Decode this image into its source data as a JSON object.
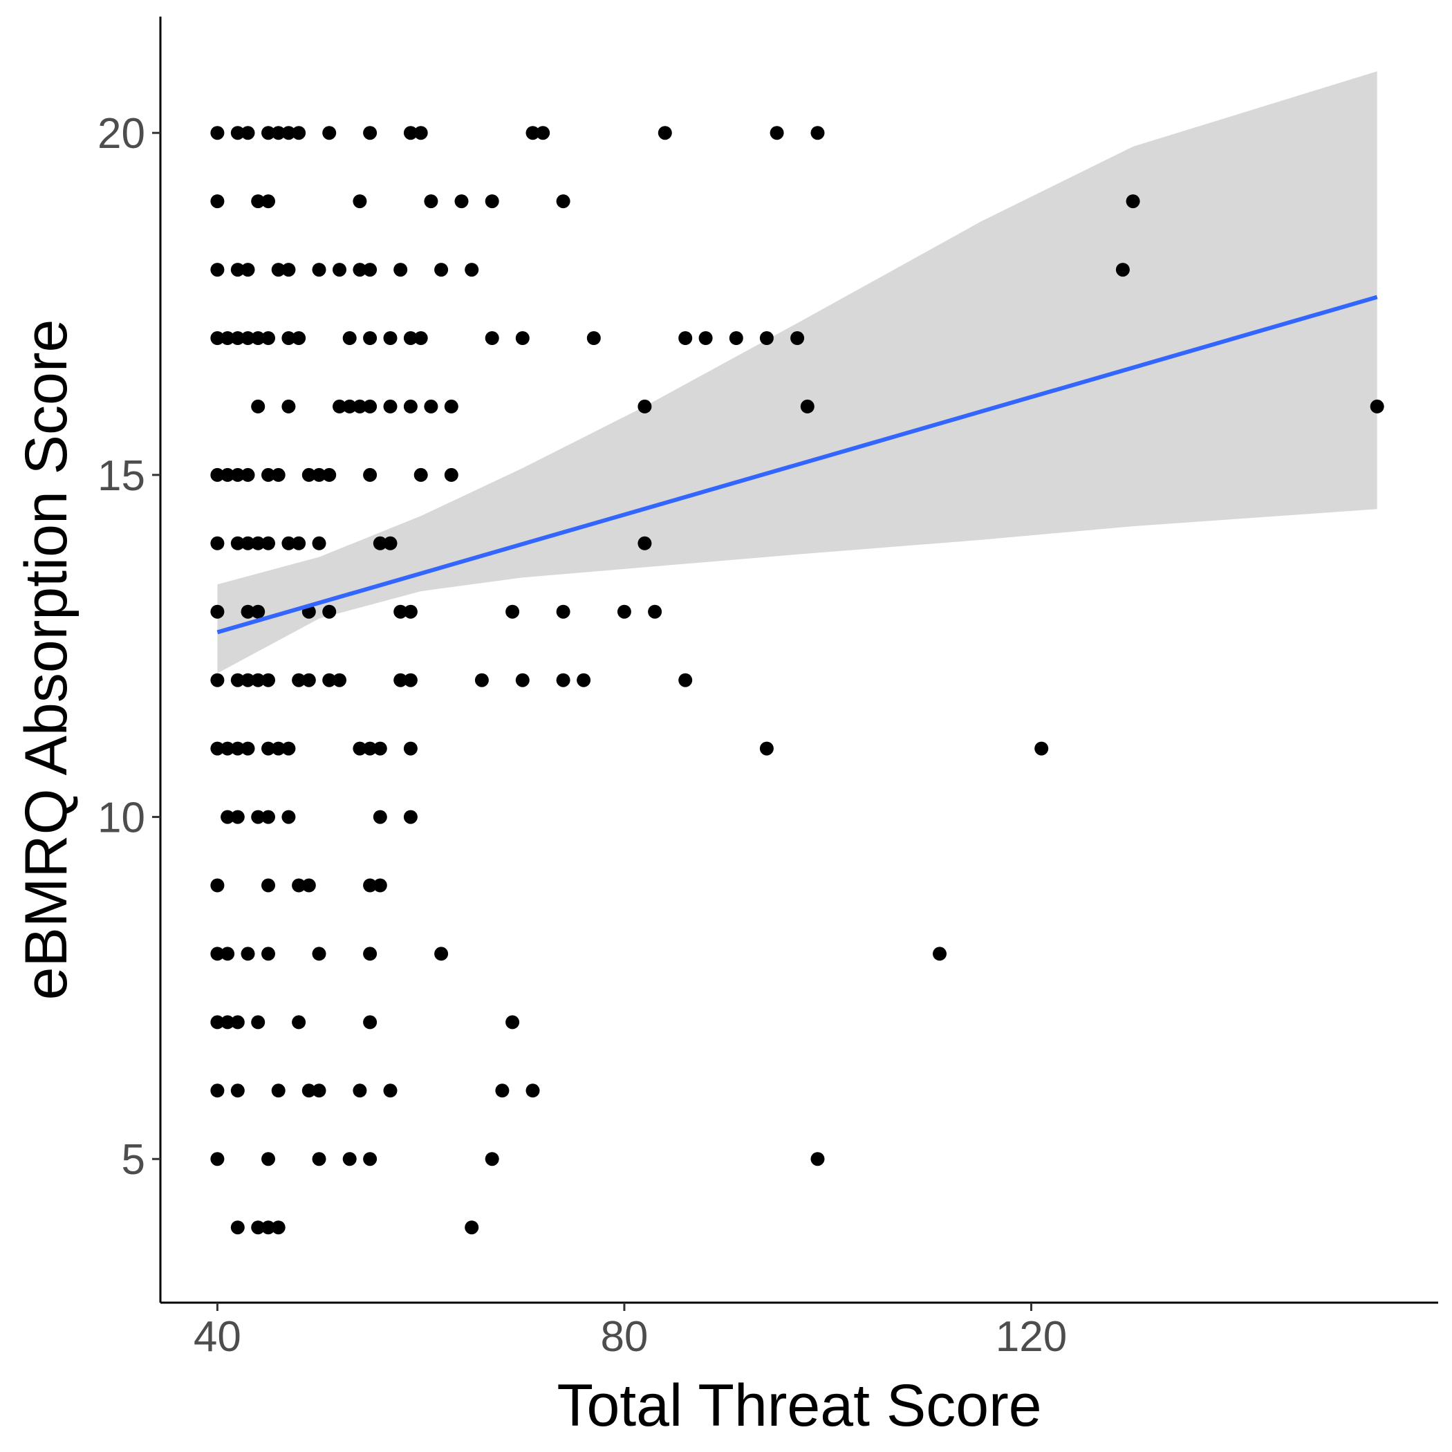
{
  "chart_data": {
    "type": "scatter",
    "xlabel": "Total Threat Score",
    "ylabel": "eBMRQ Absorption Score",
    "xlim": [
      34.4,
      160
    ],
    "ylim": [
      2.9,
      21.7
    ],
    "xticks": [
      40,
      80,
      120
    ],
    "yticks": [
      5,
      10,
      15,
      20
    ],
    "grid": false,
    "points_color": "#000000",
    "fit_color": "#3366ff",
    "ribbon_color": "#d4d4d4",
    "series": [
      {
        "points": [
          [
            40,
            20
          ],
          [
            42,
            20
          ],
          [
            43,
            20
          ],
          [
            45,
            20
          ],
          [
            46,
            20
          ],
          [
            47,
            20
          ],
          [
            48,
            20
          ],
          [
            51,
            20
          ],
          [
            55,
            20
          ],
          [
            59,
            20
          ],
          [
            60,
            20
          ],
          [
            71,
            20
          ],
          [
            72,
            20
          ],
          [
            84,
            20
          ],
          [
            95,
            20
          ],
          [
            99,
            20
          ],
          [
            40,
            19
          ],
          [
            44,
            19
          ],
          [
            45,
            19
          ],
          [
            54,
            19
          ],
          [
            61,
            19
          ],
          [
            64,
            19
          ],
          [
            67,
            19
          ],
          [
            74,
            19
          ],
          [
            130,
            19
          ],
          [
            40,
            18
          ],
          [
            42,
            18
          ],
          [
            43,
            18
          ],
          [
            46,
            18
          ],
          [
            47,
            18
          ],
          [
            50,
            18
          ],
          [
            52,
            18
          ],
          [
            54,
            18
          ],
          [
            55,
            18
          ],
          [
            58,
            18
          ],
          [
            62,
            18
          ],
          [
            65,
            18
          ],
          [
            129,
            18
          ],
          [
            40,
            17
          ],
          [
            41,
            17
          ],
          [
            42,
            17
          ],
          [
            43,
            17
          ],
          [
            44,
            17
          ],
          [
            45,
            17
          ],
          [
            47,
            17
          ],
          [
            48,
            17
          ],
          [
            53,
            17
          ],
          [
            55,
            17
          ],
          [
            57,
            17
          ],
          [
            59,
            17
          ],
          [
            60,
            17
          ],
          [
            67,
            17
          ],
          [
            70,
            17
          ],
          [
            77,
            17
          ],
          [
            86,
            17
          ],
          [
            88,
            17
          ],
          [
            91,
            17
          ],
          [
            94,
            17
          ],
          [
            97,
            17
          ],
          [
            44,
            16
          ],
          [
            47,
            16
          ],
          [
            52,
            16
          ],
          [
            53,
            16
          ],
          [
            54,
            16
          ],
          [
            55,
            16
          ],
          [
            57,
            16
          ],
          [
            59,
            16
          ],
          [
            61,
            16
          ],
          [
            63,
            16
          ],
          [
            82,
            16
          ],
          [
            98,
            16
          ],
          [
            154,
            16
          ],
          [
            40,
            15
          ],
          [
            41,
            15
          ],
          [
            42,
            15
          ],
          [
            43,
            15
          ],
          [
            45,
            15
          ],
          [
            46,
            15
          ],
          [
            49,
            15
          ],
          [
            50,
            15
          ],
          [
            51,
            15
          ],
          [
            55,
            15
          ],
          [
            60,
            15
          ],
          [
            63,
            15
          ],
          [
            40,
            14
          ],
          [
            42,
            14
          ],
          [
            43,
            14
          ],
          [
            44,
            14
          ],
          [
            45,
            14
          ],
          [
            47,
            14
          ],
          [
            48,
            14
          ],
          [
            50,
            14
          ],
          [
            56,
            14
          ],
          [
            57,
            14
          ],
          [
            82,
            14
          ],
          [
            40,
            13
          ],
          [
            43,
            13
          ],
          [
            44,
            13
          ],
          [
            49,
            13
          ],
          [
            51,
            13
          ],
          [
            58,
            13
          ],
          [
            59,
            13
          ],
          [
            69,
            13
          ],
          [
            74,
            13
          ],
          [
            80,
            13
          ],
          [
            83,
            13
          ],
          [
            40,
            12
          ],
          [
            42,
            12
          ],
          [
            43,
            12
          ],
          [
            44,
            12
          ],
          [
            45,
            12
          ],
          [
            48,
            12
          ],
          [
            49,
            12
          ],
          [
            51,
            12
          ],
          [
            52,
            12
          ],
          [
            58,
            12
          ],
          [
            59,
            12
          ],
          [
            66,
            12
          ],
          [
            70,
            12
          ],
          [
            74,
            12
          ],
          [
            76,
            12
          ],
          [
            86,
            12
          ],
          [
            40,
            11
          ],
          [
            41,
            11
          ],
          [
            42,
            11
          ],
          [
            43,
            11
          ],
          [
            45,
            11
          ],
          [
            46,
            11
          ],
          [
            47,
            11
          ],
          [
            54,
            11
          ],
          [
            55,
            11
          ],
          [
            56,
            11
          ],
          [
            59,
            11
          ],
          [
            94,
            11
          ],
          [
            121,
            11
          ],
          [
            41,
            10
          ],
          [
            42,
            10
          ],
          [
            44,
            10
          ],
          [
            45,
            10
          ],
          [
            47,
            10
          ],
          [
            56,
            10
          ],
          [
            59,
            10
          ],
          [
            40,
            9
          ],
          [
            45,
            9
          ],
          [
            48,
            9
          ],
          [
            49,
            9
          ],
          [
            55,
            9
          ],
          [
            56,
            9
          ],
          [
            40,
            8
          ],
          [
            41,
            8
          ],
          [
            43,
            8
          ],
          [
            45,
            8
          ],
          [
            50,
            8
          ],
          [
            55,
            8
          ],
          [
            62,
            8
          ],
          [
            111,
            8
          ],
          [
            40,
            7
          ],
          [
            41,
            7
          ],
          [
            42,
            7
          ],
          [
            44,
            7
          ],
          [
            48,
            7
          ],
          [
            55,
            7
          ],
          [
            69,
            7
          ],
          [
            40,
            6
          ],
          [
            42,
            6
          ],
          [
            46,
            6
          ],
          [
            49,
            6
          ],
          [
            50,
            6
          ],
          [
            54,
            6
          ],
          [
            57,
            6
          ],
          [
            68,
            6
          ],
          [
            71,
            6
          ],
          [
            40,
            5
          ],
          [
            45,
            5
          ],
          [
            50,
            5
          ],
          [
            53,
            5
          ],
          [
            55,
            5
          ],
          [
            67,
            5
          ],
          [
            99,
            5
          ],
          [
            42,
            4
          ],
          [
            44,
            4
          ],
          [
            45,
            4
          ],
          [
            46,
            4
          ],
          [
            65,
            4
          ]
        ]
      }
    ],
    "fit": {
      "x": [
        40,
        154
      ],
      "y": [
        12.7,
        17.6
      ]
    },
    "ribbon": {
      "x": [
        40,
        50,
        60,
        70,
        82,
        98,
        115,
        130,
        154
      ],
      "upper": [
        13.4,
        13.8,
        14.4,
        15.1,
        16.0,
        17.3,
        18.7,
        19.8,
        20.9
      ],
      "lower": [
        12.1,
        12.9,
        13.3,
        13.5,
        13.65,
        13.85,
        14.05,
        14.25,
        14.5
      ]
    }
  }
}
